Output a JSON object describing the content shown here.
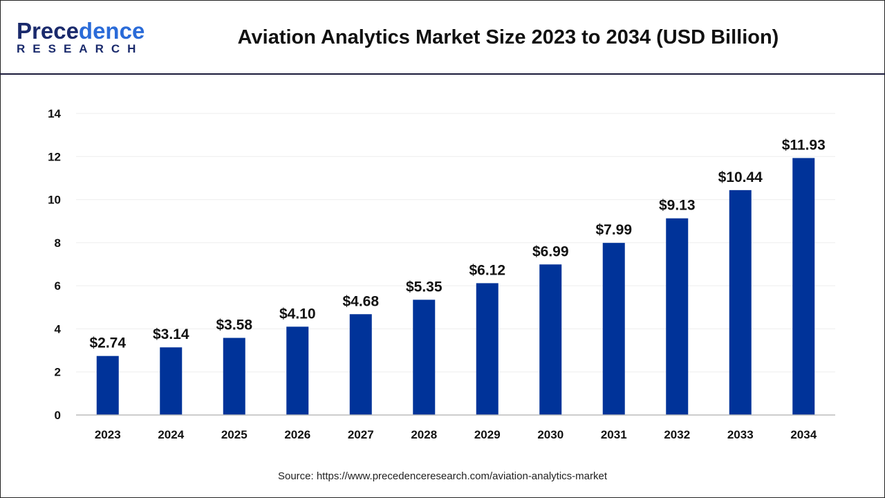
{
  "logo": {
    "line1_a": "P",
    "line1_b": "rece",
    "line1_c": "dence",
    "line2": "RESEARCH"
  },
  "title": "Aviation Analytics Market Size 2023 to 2034 (USD Billion)",
  "source": "Source: https://www.precedenceresearch.com/aviation-analytics-market",
  "chart_data": {
    "type": "bar",
    "title": "Aviation Analytics Market Size 2023 to 2034 (USD Billion)",
    "categories": [
      "2023",
      "2024",
      "2025",
      "2026",
      "2027",
      "2028",
      "2029",
      "2030",
      "2031",
      "2032",
      "2033",
      "2034"
    ],
    "values": [
      2.74,
      3.14,
      3.58,
      4.1,
      4.68,
      5.35,
      6.12,
      6.99,
      7.99,
      9.13,
      10.44,
      11.93
    ],
    "data_labels": [
      "$2.74",
      "$3.14",
      "$3.58",
      "$4.10",
      "$4.68",
      "$5.35",
      "$6.12",
      "$6.99",
      "$7.99",
      "$9.13",
      "$10.44",
      "$11.93"
    ],
    "yticks": [
      0,
      2,
      4,
      6,
      8,
      10,
      12,
      14
    ],
    "ylim": [
      0,
      14
    ],
    "grid": true,
    "bar_color": "#003399"
  }
}
